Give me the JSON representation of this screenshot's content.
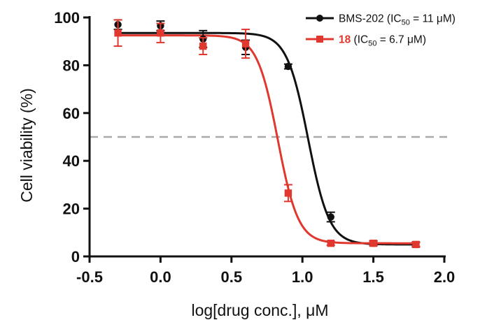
{
  "chart_data": {
    "type": "scatter",
    "xlabel": "log[drug conc.], μM",
    "ylabel": "Cell viability (%)",
    "xlim": [
      -0.5,
      2.0
    ],
    "ylim": [
      0,
      100
    ],
    "x_ticks": [
      "-0.5",
      "0.0",
      "0.5",
      "1.0",
      "1.5",
      "2.0"
    ],
    "y_ticks": [
      "0",
      "20",
      "40",
      "60",
      "80",
      "100"
    ],
    "reference_line": {
      "y": 50,
      "style": "dashed",
      "color": "#a9a9a9"
    },
    "legend_position": "top-right",
    "series": [
      {
        "name": "BMS-202",
        "legend_label": {
          "name": "BMS-202",
          "ic_prefix": " (IC",
          "ic_sub": "50",
          "ic_suffix": " = 11 μM)"
        },
        "ic50_uM": 11,
        "color": "#111111",
        "marker": "circle",
        "fit": {
          "top": 93.5,
          "bottom": 5,
          "hill": 5.8,
          "log_ic50": 1.04
        },
        "x": [
          -0.3,
          0.0,
          0.3,
          0.6,
          0.9,
          1.2,
          1.5,
          1.8
        ],
        "y": [
          97,
          96.5,
          91,
          87.5,
          79.5,
          16.5,
          5.5,
          5
        ],
        "error": [
          2,
          2,
          3.5,
          3,
          1,
          2,
          1,
          1
        ]
      },
      {
        "name": "18",
        "legend_label": {
          "name": "18",
          "ic_prefix": " (IC",
          "ic_sub": "50",
          "ic_suffix": " = 6.7 μM)"
        },
        "ic50_uM": 6.7,
        "color": "#e0372e",
        "marker": "square",
        "fit": {
          "top": 92.5,
          "bottom": 5.5,
          "hill": 6.0,
          "log_ic50": 0.826
        },
        "x": [
          -0.3,
          0.0,
          0.3,
          0.6,
          0.9,
          1.2,
          1.5,
          1.8
        ],
        "y": [
          93.5,
          93.5,
          88,
          89,
          26.5,
          5.5,
          5.5,
          5
        ],
        "error": [
          5.5,
          4,
          3.5,
          6,
          3.5,
          0.8,
          0.8,
          0.8
        ]
      }
    ]
  }
}
